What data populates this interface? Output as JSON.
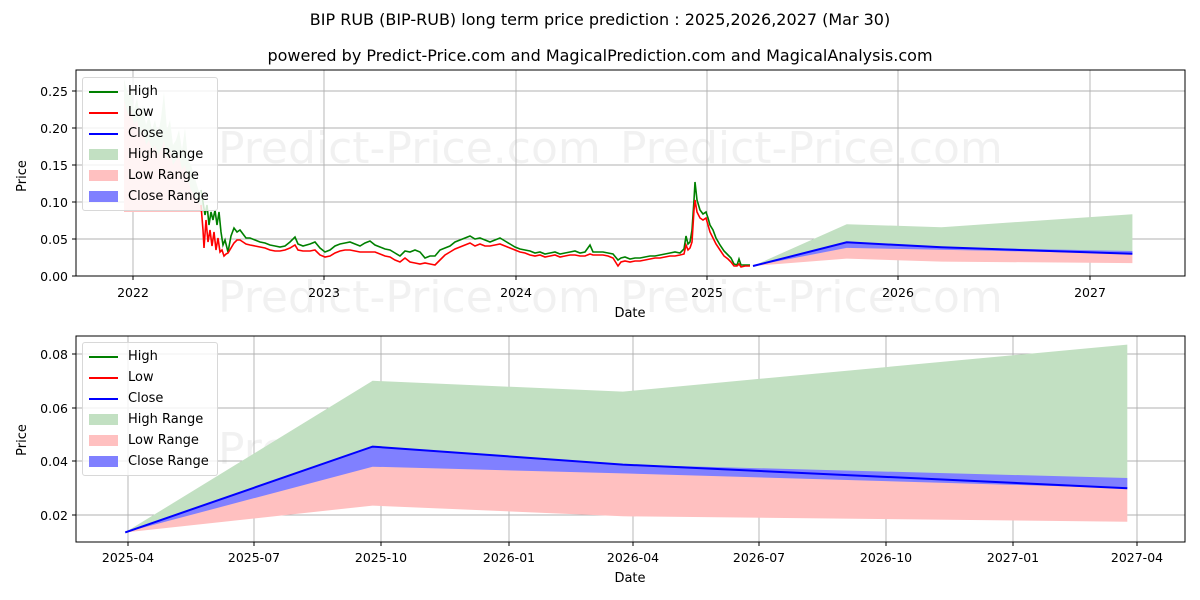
{
  "title": "BIP RUB (BIP-RUB) long term price prediction : 2025,2026,2027 (Mar 30)",
  "subtitle": "powered by Predict-Price.com and MagicalPrediction.com and MagicalAnalysis.com",
  "watermark": "Predict-Price.com",
  "colors": {
    "high": "#008000",
    "low": "#ff0000",
    "close": "#0000ff",
    "high_range": "#c2e0c2",
    "low_range": "#ffc0c0",
    "close_range": "#8080ff"
  },
  "legend": {
    "items": [
      {
        "label": "High",
        "kind": "line",
        "color": "#008000"
      },
      {
        "label": "Low",
        "kind": "line",
        "color": "#ff0000"
      },
      {
        "label": "Close",
        "kind": "line",
        "color": "#0000ff"
      },
      {
        "label": "High Range",
        "kind": "patch",
        "color": "#c2e0c2"
      },
      {
        "label": "Low Range",
        "kind": "patch",
        "color": "#ffc0c0"
      },
      {
        "label": "Close Range",
        "kind": "patch",
        "color": "#8080ff"
      }
    ]
  },
  "chart_data": [
    {
      "type": "line",
      "name": "history-and-forecast",
      "title": "",
      "xlabel": "Date",
      "ylabel": "Price",
      "ylim": [
        0,
        0.27
      ],
      "grid": true,
      "legend_position": "upper left",
      "x_ticks": [
        "2022",
        "2023",
        "2024",
        "2025",
        "2026",
        "2027"
      ],
      "y_ticks": [
        "0.00",
        "0.05",
        "0.10",
        "0.15",
        "0.20",
        "0.25"
      ],
      "history_approx": {
        "x": [
          "2021-12",
          "2022-02",
          "2022-04",
          "2022-05",
          "2022-06",
          "2022-08",
          "2022-11",
          "2023-03",
          "2023-06",
          "2023-07",
          "2023-10",
          "2024-01",
          "2024-04",
          "2024-07",
          "2024-08",
          "2024-11",
          "2024-12",
          "2025-01",
          "2025-02",
          "2025-03"
        ],
        "high": [
          0.265,
          0.22,
          0.17,
          0.095,
          0.085,
          0.065,
          0.048,
          0.042,
          0.034,
          0.033,
          0.052,
          0.036,
          0.032,
          0.032,
          0.024,
          0.056,
          0.123,
          0.08,
          0.028,
          0.016
        ],
        "low": [
          0.22,
          0.18,
          0.13,
          0.04,
          0.03,
          0.055,
          0.032,
          0.036,
          0.022,
          0.014,
          0.041,
          0.031,
          0.027,
          0.028,
          0.012,
          0.028,
          0.095,
          0.06,
          0.015,
          0.0135
        ]
      },
      "forecast": {
        "x": [
          "2025-03-30",
          "2025-09-25",
          "2026-03-25",
          "2027-03-25"
        ],
        "close": [
          0.0135,
          0.0455,
          0.0388,
          0.03
        ],
        "high_range_upper": [
          0.0135,
          0.07,
          0.066,
          0.0835
        ],
        "low_range_lower": [
          0.0135,
          0.0235,
          0.0195,
          0.0175
        ]
      }
    },
    {
      "type": "area",
      "name": "forecast-detail",
      "title": "",
      "xlabel": "Date",
      "ylabel": "Price",
      "ylim": [
        0.01,
        0.087
      ],
      "grid": true,
      "legend_position": "upper left",
      "x_ticks": [
        "2025-04",
        "2025-07",
        "2025-10",
        "2026-01",
        "2026-04",
        "2026-07",
        "2026-10",
        "2027-01",
        "2027-04"
      ],
      "y_ticks": [
        "0.02",
        "0.04",
        "0.06",
        "0.08"
      ],
      "x": [
        "2025-03-30",
        "2025-09-25",
        "2026-03-25",
        "2027-03-25"
      ],
      "series": [
        {
          "name": "Close",
          "values": [
            0.0135,
            0.0455,
            0.0388,
            0.03
          ]
        },
        {
          "name": "High Range (upper)",
          "values": [
            0.0135,
            0.07,
            0.066,
            0.0835
          ]
        },
        {
          "name": "Low Range (lower)",
          "values": [
            0.0135,
            0.0235,
            0.0195,
            0.0175
          ]
        },
        {
          "name": "Close Range (lower)",
          "values": [
            0.0135,
            0.038,
            0.0355,
            0.03
          ]
        },
        {
          "name": "Close Range (upper)",
          "values": [
            0.0135,
            0.0455,
            0.0388,
            0.0338
          ]
        }
      ]
    }
  ]
}
